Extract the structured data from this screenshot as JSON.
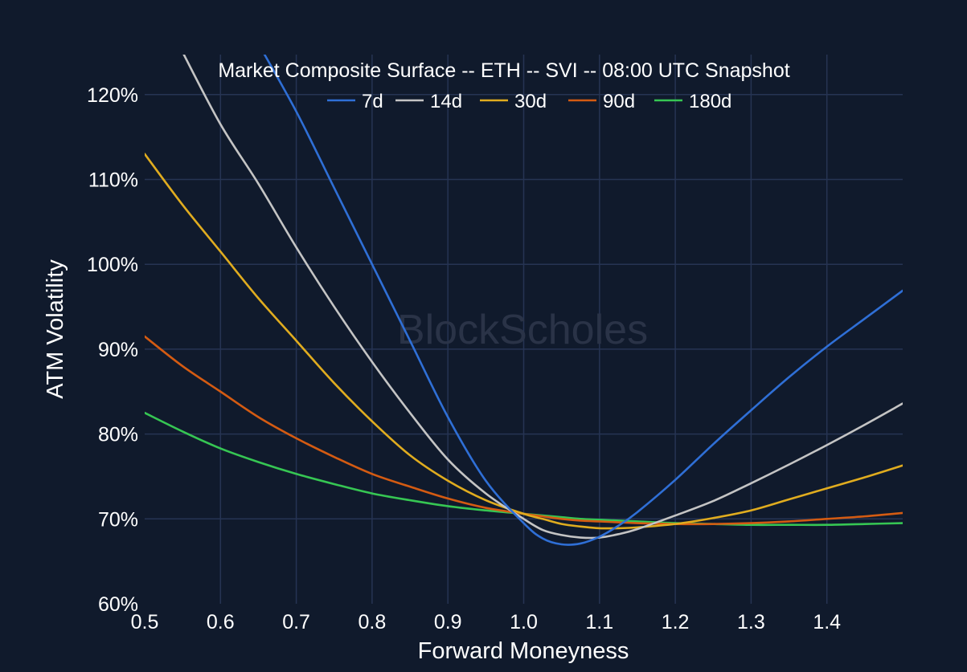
{
  "chart_data": {
    "type": "line",
    "title": "Market Composite Surface -- ETH -- SVI -- 08:00 UTC Snapshot",
    "xlabel": "Forward Moneyness",
    "ylabel": "ATM Volatility",
    "watermark": "BlockScholes",
    "xlim": [
      0.5,
      1.5
    ],
    "ylim": [
      60,
      125
    ],
    "x_ticks": [
      {
        "value": 0.5,
        "label": "0.5"
      },
      {
        "value": 0.6,
        "label": "0.6"
      },
      {
        "value": 0.7,
        "label": "0.7"
      },
      {
        "value": 0.8,
        "label": "0.8"
      },
      {
        "value": 0.9,
        "label": "0.9"
      },
      {
        "value": 1.0,
        "label": "1.0"
      },
      {
        "value": 1.1,
        "label": "1.1"
      },
      {
        "value": 1.2,
        "label": "1.2"
      },
      {
        "value": 1.3,
        "label": "1.3"
      },
      {
        "value": 1.4,
        "label": "1.4"
      }
    ],
    "y_ticks": [
      {
        "value": 60,
        "label": "60%"
      },
      {
        "value": 70,
        "label": "70%"
      },
      {
        "value": 80,
        "label": "80%"
      },
      {
        "value": 90,
        "label": "90%"
      },
      {
        "value": 100,
        "label": "100%"
      },
      {
        "value": 110,
        "label": "110%"
      },
      {
        "value": 120,
        "label": "120%"
      }
    ],
    "grid": true,
    "legend_position": "top-center",
    "x": [
      0.5,
      0.55,
      0.6,
      0.65,
      0.7,
      0.75,
      0.8,
      0.85,
      0.9,
      0.95,
      1.0,
      1.025,
      1.05,
      1.075,
      1.1,
      1.125,
      1.15,
      1.2,
      1.25,
      1.3,
      1.35,
      1.4,
      1.45,
      1.5
    ],
    "series": [
      {
        "name": "7d",
        "color": "#2f6fd6",
        "values": [
          null,
          null,
          null,
          126,
          118,
          109,
          100,
          91,
          82,
          74.5,
          69.5,
          67.7,
          67.0,
          67.1,
          67.9,
          69.2,
          70.8,
          74.6,
          78.8,
          82.8,
          86.7,
          90.3,
          93.6,
          96.9
        ]
      },
      {
        "name": "14d",
        "color": "#c4c4c4",
        "values": [
          null,
          125,
          116.5,
          109.5,
          102,
          95,
          88.5,
          82.5,
          77,
          73,
          70,
          68.7,
          68.1,
          67.8,
          67.8,
          68.2,
          68.8,
          70.4,
          72.1,
          74.2,
          76.4,
          78.7,
          81.1,
          83.6
        ]
      },
      {
        "name": "30d",
        "color": "#e0ac1f",
        "values": [
          113,
          107,
          101.5,
          96,
          91,
          86,
          81.5,
          77.5,
          74.5,
          72.2,
          70.6,
          70.0,
          69.4,
          69.1,
          68.9,
          68.9,
          69.0,
          69.4,
          70.1,
          71.0,
          72.3,
          73.6,
          74.9,
          76.3
        ]
      },
      {
        "name": "90d",
        "color": "#d45b12",
        "values": [
          91.5,
          88,
          85,
          82,
          79.5,
          77.3,
          75.3,
          73.8,
          72.4,
          71.3,
          70.6,
          70.3,
          70.0,
          69.8,
          69.7,
          69.6,
          69.5,
          69.4,
          69.4,
          69.5,
          69.7,
          70.0,
          70.3,
          70.7
        ]
      },
      {
        "name": "180d",
        "color": "#36c653",
        "values": [
          82.5,
          80.3,
          78.3,
          76.7,
          75.3,
          74.1,
          73.0,
          72.2,
          71.5,
          71.0,
          70.6,
          70.4,
          70.2,
          70.0,
          69.9,
          69.8,
          69.7,
          69.5,
          69.4,
          69.3,
          69.3,
          69.3,
          69.4,
          69.5
        ]
      }
    ]
  }
}
